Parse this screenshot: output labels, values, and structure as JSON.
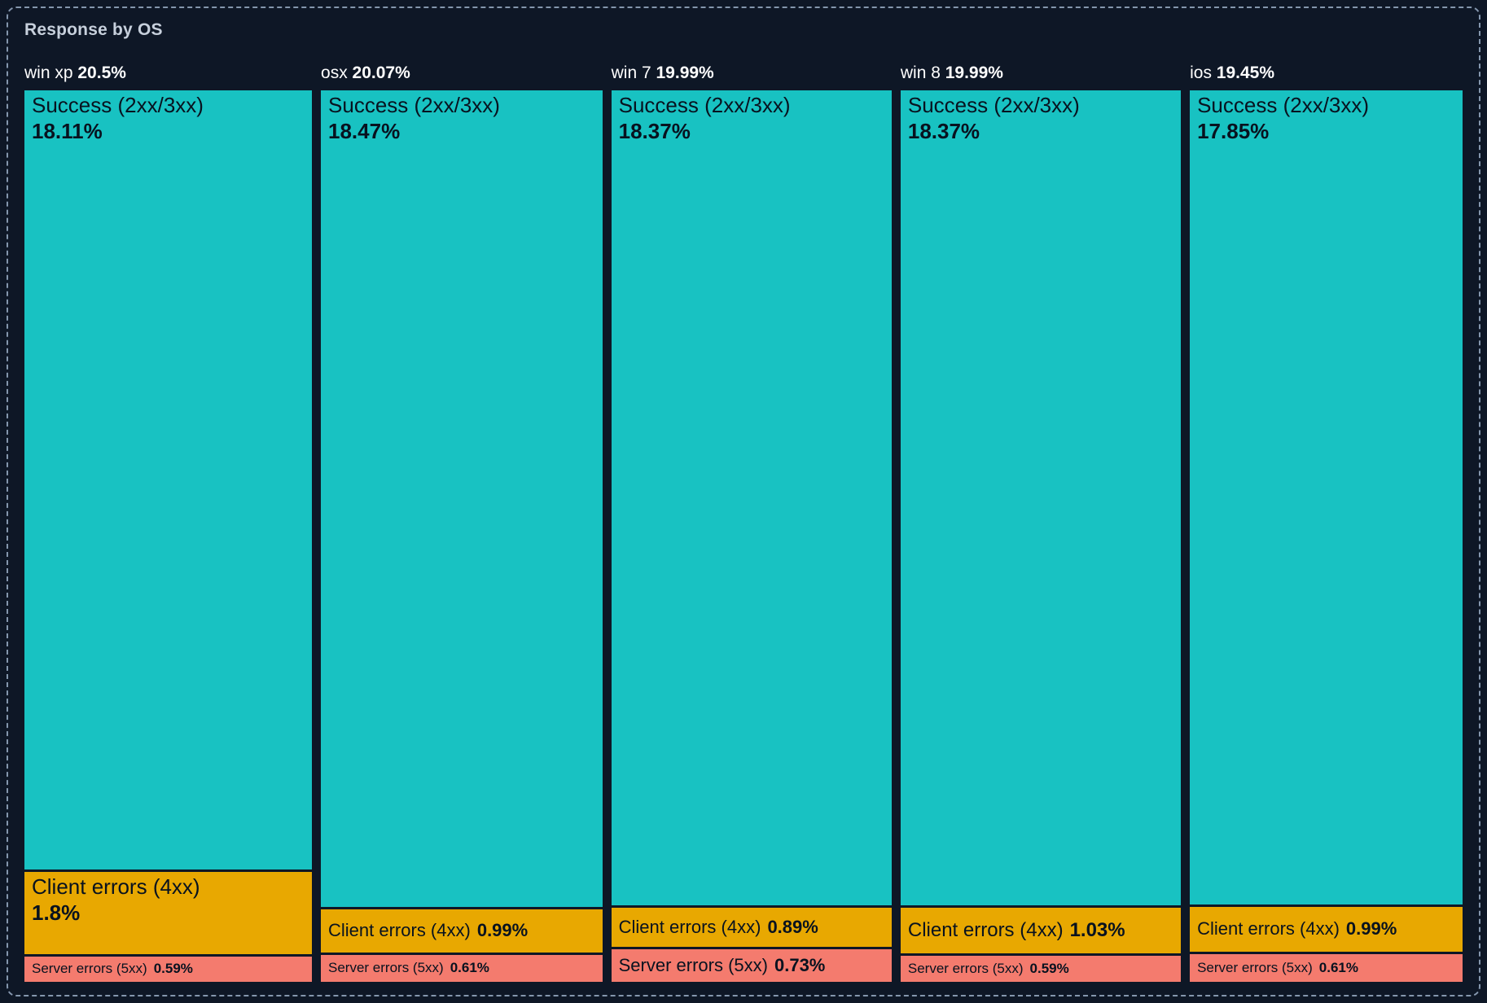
{
  "panel": {
    "title": "Response by OS",
    "colors": {
      "background": "#0e1726",
      "border": "#8496ad",
      "title": "#c7d0dc",
      "header_text": "#ffffff",
      "success": "#18c2c2",
      "client_errors": "#e8a801",
      "server_errors": "#f47b6e",
      "segment_text": "#08121f"
    }
  },
  "chart_data": {
    "type": "treemap",
    "title": "Response by OS",
    "unit": "%",
    "legend": [
      "Success (2xx/3xx)",
      "Client errors (4xx)",
      "Server errors (5xx)"
    ],
    "columns": [
      {
        "os": "win xp",
        "share_pct": 20.5,
        "share_label": "20.5%",
        "segments": [
          {
            "kind": "success",
            "name": "Success (2xx/3xx)",
            "value_pct": 18.11,
            "value_label": "18.11%"
          },
          {
            "kind": "client",
            "name": "Client errors (4xx)",
            "value_pct": 1.8,
            "value_label": "1.8%"
          },
          {
            "kind": "server",
            "name": "Server errors (5xx)",
            "value_pct": 0.59,
            "value_label": "0.59%"
          }
        ]
      },
      {
        "os": "osx",
        "share_pct": 20.07,
        "share_label": "20.07%",
        "segments": [
          {
            "kind": "success",
            "name": "Success (2xx/3xx)",
            "value_pct": 18.47,
            "value_label": "18.47%"
          },
          {
            "kind": "client",
            "name": "Client errors (4xx)",
            "value_pct": 0.99,
            "value_label": "0.99%"
          },
          {
            "kind": "server",
            "name": "Server errors (5xx)",
            "value_pct": 0.61,
            "value_label": "0.61%"
          }
        ]
      },
      {
        "os": "win 7",
        "share_pct": 19.99,
        "share_label": "19.99%",
        "segments": [
          {
            "kind": "success",
            "name": "Success (2xx/3xx)",
            "value_pct": 18.37,
            "value_label": "18.37%"
          },
          {
            "kind": "client",
            "name": "Client errors (4xx)",
            "value_pct": 0.89,
            "value_label": "0.89%"
          },
          {
            "kind": "server",
            "name": "Server errors (5xx)",
            "value_pct": 0.73,
            "value_label": "0.73%"
          }
        ]
      },
      {
        "os": "win 8",
        "share_pct": 19.99,
        "share_label": "19.99%",
        "segments": [
          {
            "kind": "success",
            "name": "Success (2xx/3xx)",
            "value_pct": 18.37,
            "value_label": "18.37%"
          },
          {
            "kind": "client",
            "name": "Client errors (4xx)",
            "value_pct": 1.03,
            "value_label": "1.03%"
          },
          {
            "kind": "server",
            "name": "Server errors (5xx)",
            "value_pct": 0.59,
            "value_label": "0.59%"
          }
        ]
      },
      {
        "os": "ios",
        "share_pct": 19.45,
        "share_label": "19.45%",
        "segments": [
          {
            "kind": "success",
            "name": "Success (2xx/3xx)",
            "value_pct": 17.85,
            "value_label": "17.85%"
          },
          {
            "kind": "client",
            "name": "Client errors (4xx)",
            "value_pct": 0.99,
            "value_label": "0.99%"
          },
          {
            "kind": "server",
            "name": "Server errors (5xx)",
            "value_pct": 0.61,
            "value_label": "0.61%"
          }
        ]
      }
    ]
  }
}
